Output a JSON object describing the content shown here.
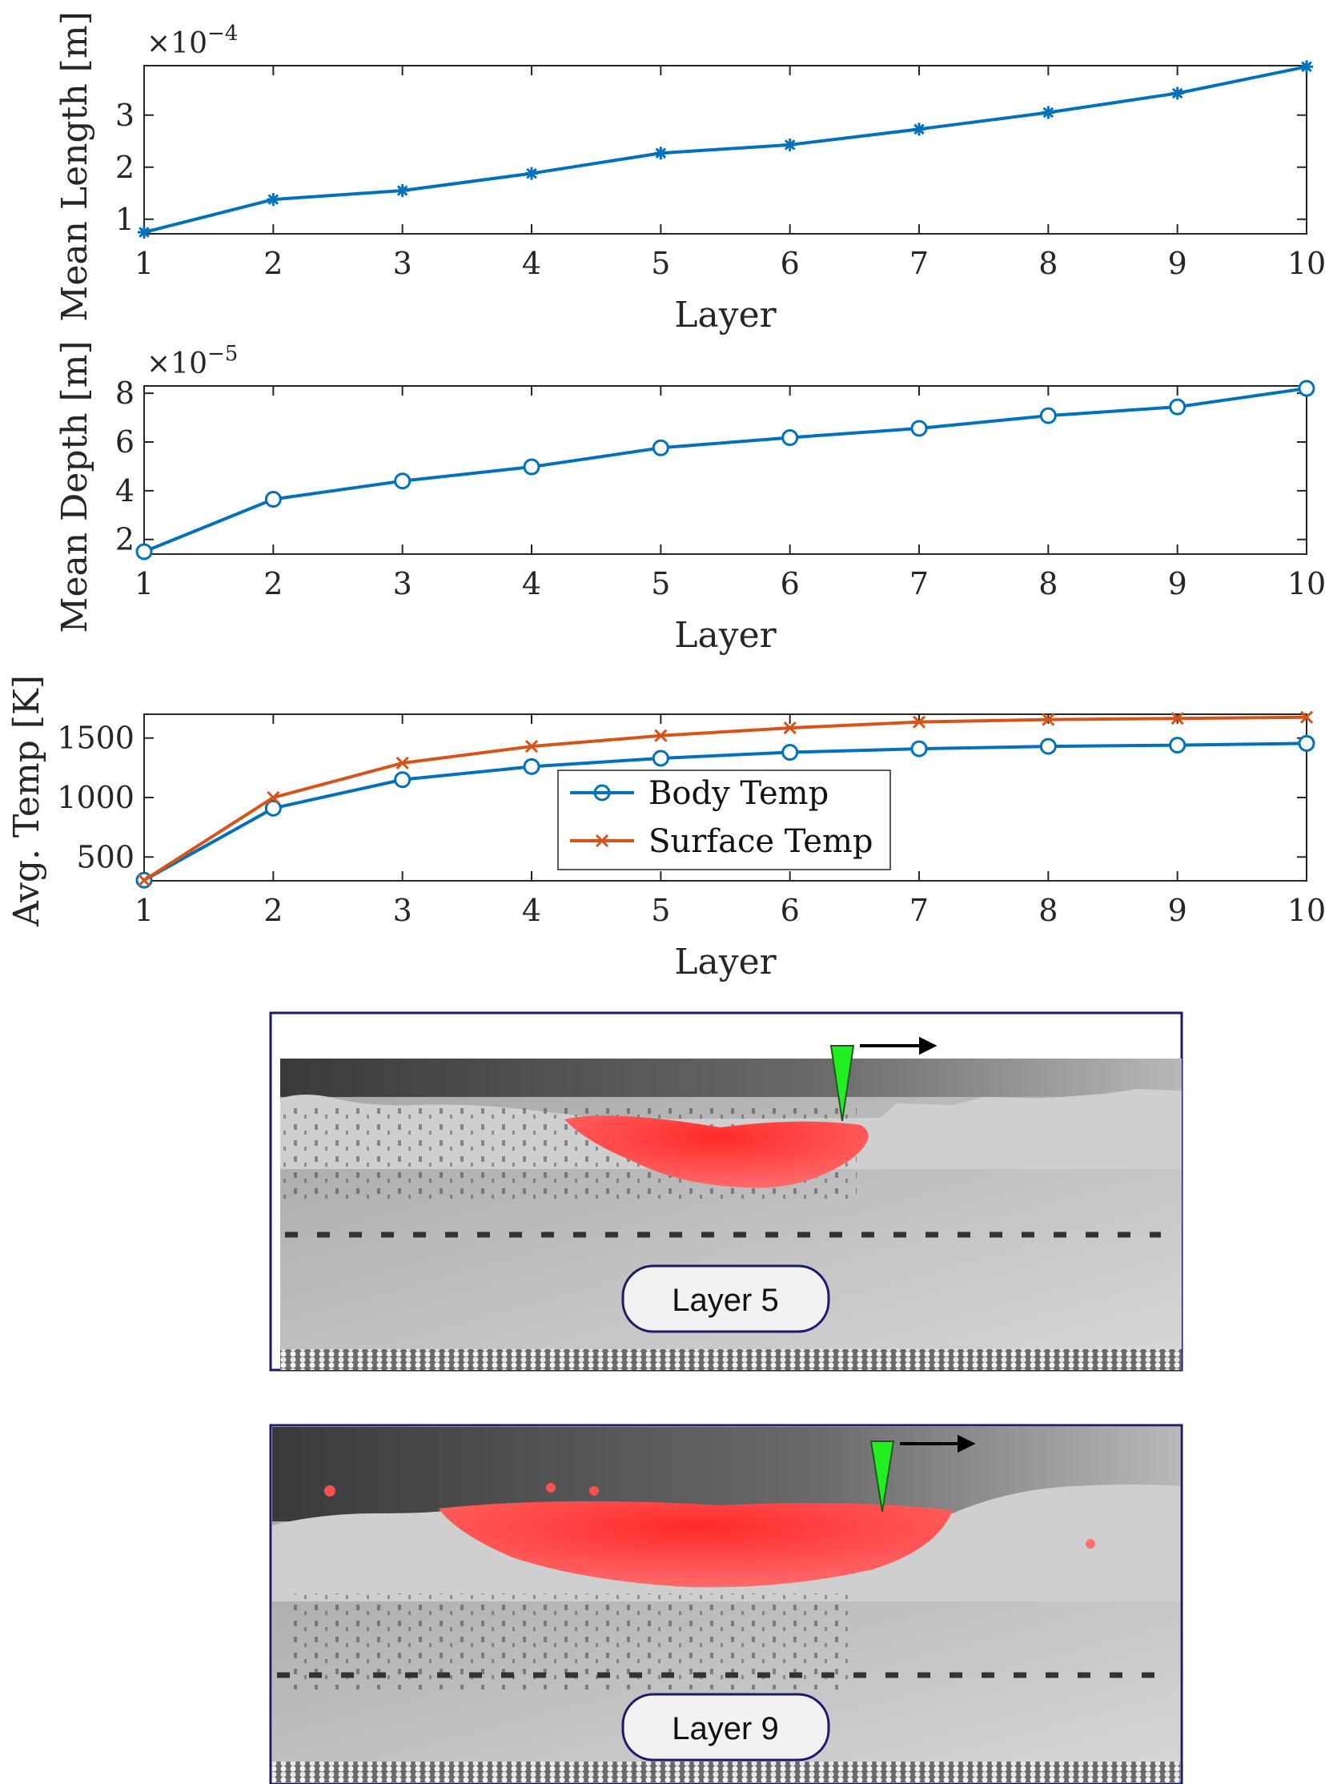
{
  "colors": {
    "blue": "#0072BD",
    "orange": "#D95319",
    "axis": "#262626",
    "frame": "#1a1a6e",
    "melt": "#ff4040",
    "laser": "#22ee22"
  },
  "chart_data": [
    {
      "type": "line",
      "xlabel": "Layer",
      "ylabel": "Mean Length [m]",
      "y_multiplier": "×10",
      "y_multiplier_exp": "−4",
      "x": [
        1,
        2,
        3,
        4,
        5,
        6,
        7,
        8,
        9,
        10
      ],
      "xlim": [
        1,
        10
      ],
      "ylim": [
        0.72,
        3.95
      ],
      "yticks": [
        1,
        2,
        3
      ],
      "marker": "asterisk",
      "series": [
        {
          "values": [
            0.75,
            1.38,
            1.55,
            1.88,
            2.27,
            2.43,
            2.73,
            3.05,
            3.42,
            3.93
          ]
        }
      ]
    },
    {
      "type": "line",
      "xlabel": "Layer",
      "ylabel": "Mean Depth [m]",
      "y_multiplier": "×10",
      "y_multiplier_exp": "−5",
      "x": [
        1,
        2,
        3,
        4,
        5,
        6,
        7,
        8,
        9,
        10
      ],
      "xlim": [
        1,
        10
      ],
      "ylim": [
        1.4,
        8.3
      ],
      "yticks": [
        2,
        4,
        6,
        8
      ],
      "marker": "circle",
      "series": [
        {
          "values": [
            1.5,
            3.65,
            4.4,
            4.98,
            5.76,
            6.18,
            6.56,
            7.08,
            7.44,
            8.2
          ]
        }
      ]
    },
    {
      "type": "line",
      "xlabel": "Layer",
      "ylabel": "Avg. Temp [K]",
      "x": [
        1,
        2,
        3,
        4,
        5,
        6,
        7,
        8,
        9,
        10
      ],
      "xlim": [
        1,
        10
      ],
      "ylim": [
        300,
        1700
      ],
      "yticks": [
        500,
        1000,
        1500
      ],
      "legend": "center-inside",
      "series": [
        {
          "name": "Body Temp",
          "marker": "circle",
          "values": [
            305,
            910,
            1150,
            1260,
            1330,
            1380,
            1410,
            1430,
            1440,
            1455
          ]
        },
        {
          "name": "Surface Temp",
          "marker": "x",
          "values": [
            305,
            1000,
            1290,
            1430,
            1520,
            1585,
            1635,
            1655,
            1665,
            1675
          ]
        }
      ]
    }
  ],
  "snapshots": [
    {
      "caption": "Layer 5"
    },
    {
      "caption": "Layer 9"
    }
  ]
}
